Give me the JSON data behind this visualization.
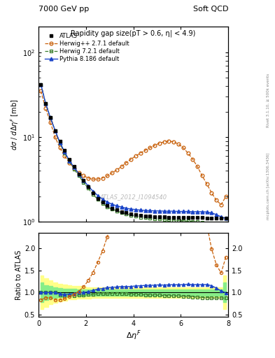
{
  "title_top_left": "7000 GeV pp",
  "title_top_right": "Soft QCD",
  "plot_title": "Rapidity gap size(pT > 0.6, η| < 4.9)",
  "ylabel_main": "dσ / dΔη$^F$ [mb]",
  "ylabel_ratio": "Ratio to ATLAS",
  "xlabel": "Δη$^F$",
  "watermark": "ATLAS_2012_I1094540",
  "right_label": "mcplots.cern.ch [arXiv:1306.3436]",
  "right_label2": "Rivet 3.1.10, ≥ 500k events",
  "atlas_x": [
    0.1,
    0.3,
    0.5,
    0.7,
    0.9,
    1.1,
    1.3,
    1.5,
    1.7,
    1.9,
    2.1,
    2.3,
    2.5,
    2.7,
    2.9,
    3.1,
    3.3,
    3.5,
    3.7,
    3.9,
    4.1,
    4.3,
    4.5,
    4.7,
    4.9,
    5.1,
    5.3,
    5.5,
    5.7,
    5.9,
    6.1,
    6.3,
    6.5,
    6.7,
    6.9,
    7.1,
    7.3,
    7.5,
    7.7,
    7.9
  ],
  "atlas_y": [
    42,
    25,
    17,
    12,
    9.0,
    7.0,
    5.5,
    4.5,
    3.7,
    3.1,
    2.6,
    2.2,
    1.9,
    1.7,
    1.55,
    1.45,
    1.38,
    1.32,
    1.28,
    1.25,
    1.22,
    1.2,
    1.18,
    1.17,
    1.16,
    1.15,
    1.15,
    1.14,
    1.14,
    1.13,
    1.13,
    1.12,
    1.12,
    1.12,
    1.12,
    1.11,
    1.11,
    1.11,
    1.11,
    1.11
  ],
  "herwigpp_x": [
    0.1,
    0.3,
    0.5,
    0.7,
    0.9,
    1.1,
    1.3,
    1.5,
    1.7,
    1.9,
    2.1,
    2.3,
    2.5,
    2.7,
    2.9,
    3.1,
    3.3,
    3.5,
    3.7,
    3.9,
    4.1,
    4.3,
    4.5,
    4.7,
    4.9,
    5.1,
    5.3,
    5.5,
    5.7,
    5.9,
    6.1,
    6.3,
    6.5,
    6.7,
    6.9,
    7.1,
    7.3,
    7.5,
    7.7,
    7.9
  ],
  "herwigpp_y": [
    35,
    22,
    15,
    10,
    7.5,
    6.0,
    5.0,
    4.3,
    3.8,
    3.5,
    3.3,
    3.2,
    3.2,
    3.3,
    3.5,
    3.8,
    4.1,
    4.5,
    5.0,
    5.5,
    6.0,
    6.5,
    7.0,
    7.5,
    8.0,
    8.5,
    8.8,
    9.0,
    8.8,
    8.3,
    7.5,
    6.5,
    5.5,
    4.5,
    3.5,
    2.8,
    2.2,
    1.8,
    1.6,
    2.0
  ],
  "herwig721_x": [
    0.1,
    0.3,
    0.5,
    0.7,
    0.9,
    1.1,
    1.3,
    1.5,
    1.7,
    1.9,
    2.1,
    2.3,
    2.5,
    2.7,
    2.9,
    3.1,
    3.3,
    3.5,
    3.7,
    3.9,
    4.1,
    4.3,
    4.5,
    4.7,
    4.9,
    5.1,
    5.3,
    5.5,
    5.7,
    5.9,
    6.1,
    6.3,
    6.5,
    6.7,
    6.9,
    7.1,
    7.3,
    7.5,
    7.7,
    7.9
  ],
  "herwig721_y": [
    42,
    25,
    17,
    12,
    8.5,
    6.5,
    5.2,
    4.2,
    3.5,
    2.9,
    2.5,
    2.1,
    1.85,
    1.65,
    1.5,
    1.42,
    1.35,
    1.29,
    1.24,
    1.2,
    1.17,
    1.14,
    1.12,
    1.1,
    1.09,
    1.08,
    1.07,
    1.06,
    1.05,
    1.04,
    1.03,
    1.02,
    1.01,
    1.0,
    0.99,
    0.98,
    0.97,
    0.97,
    0.97,
    0.97
  ],
  "pythia_x": [
    0.1,
    0.3,
    0.5,
    0.7,
    0.9,
    1.1,
    1.3,
    1.5,
    1.7,
    1.9,
    2.1,
    2.3,
    2.5,
    2.7,
    2.9,
    3.1,
    3.3,
    3.5,
    3.7,
    3.9,
    4.1,
    4.3,
    4.5,
    4.7,
    4.9,
    5.1,
    5.3,
    5.5,
    5.7,
    5.9,
    6.1,
    6.3,
    6.5,
    6.7,
    6.9,
    7.1,
    7.3,
    7.5,
    7.7,
    7.9
  ],
  "pythia_y": [
    42,
    25,
    17,
    12,
    8.7,
    6.7,
    5.3,
    4.4,
    3.7,
    3.1,
    2.65,
    2.3,
    2.05,
    1.85,
    1.72,
    1.62,
    1.55,
    1.5,
    1.45,
    1.42,
    1.4,
    1.38,
    1.37,
    1.36,
    1.35,
    1.35,
    1.34,
    1.34,
    1.34,
    1.33,
    1.33,
    1.33,
    1.32,
    1.32,
    1.32,
    1.31,
    1.28,
    1.22,
    1.15,
    1.1
  ],
  "atlas_color": "#000000",
  "herwigpp_color": "#c8600a",
  "herwig721_color": "#3a7d2c",
  "pythia_color": "#1a44c8",
  "band_yellow_lo": [
    0.62,
    0.68,
    0.73,
    0.77,
    0.8,
    0.82,
    0.84,
    0.85,
    0.86,
    0.87,
    0.87,
    0.88,
    0.88,
    0.88,
    0.88,
    0.88,
    0.88,
    0.88,
    0.88,
    0.88,
    0.88,
    0.88,
    0.88,
    0.88,
    0.88,
    0.88,
    0.88,
    0.88,
    0.88,
    0.88,
    0.88,
    0.88,
    0.88,
    0.88,
    0.88,
    0.88,
    0.88,
    0.88,
    0.88,
    0.62
  ],
  "band_yellow_hi": [
    1.38,
    1.32,
    1.27,
    1.23,
    1.2,
    1.18,
    1.16,
    1.15,
    1.14,
    1.13,
    1.12,
    1.12,
    1.12,
    1.12,
    1.12,
    1.12,
    1.12,
    1.12,
    1.12,
    1.12,
    1.12,
    1.12,
    1.12,
    1.12,
    1.12,
    1.12,
    1.12,
    1.12,
    1.12,
    1.12,
    1.12,
    1.12,
    1.12,
    1.12,
    1.12,
    1.12,
    1.12,
    1.12,
    1.12,
    1.38
  ],
  "band_green_lo": [
    0.78,
    0.83,
    0.86,
    0.88,
    0.9,
    0.91,
    0.92,
    0.92,
    0.93,
    0.93,
    0.93,
    0.93,
    0.93,
    0.93,
    0.93,
    0.93,
    0.93,
    0.93,
    0.93,
    0.93,
    0.93,
    0.93,
    0.93,
    0.93,
    0.93,
    0.93,
    0.93,
    0.93,
    0.93,
    0.93,
    0.93,
    0.93,
    0.93,
    0.93,
    0.93,
    0.93,
    0.93,
    0.93,
    0.93,
    0.78
  ],
  "band_green_hi": [
    1.22,
    1.17,
    1.14,
    1.12,
    1.1,
    1.09,
    1.08,
    1.08,
    1.07,
    1.07,
    1.07,
    1.07,
    1.07,
    1.07,
    1.07,
    1.07,
    1.07,
    1.07,
    1.07,
    1.07,
    1.07,
    1.07,
    1.07,
    1.07,
    1.07,
    1.07,
    1.07,
    1.07,
    1.07,
    1.07,
    1.07,
    1.07,
    1.07,
    1.07,
    1.07,
    1.07,
    1.07,
    1.07,
    1.07,
    1.22
  ],
  "xlim": [
    0,
    8
  ],
  "ylim_main_log": [
    1,
    200
  ],
  "ylim_ratio": [
    0.45,
    2.35
  ],
  "ratio_yticks": [
    0.5,
    1.0,
    1.5,
    2.0
  ]
}
